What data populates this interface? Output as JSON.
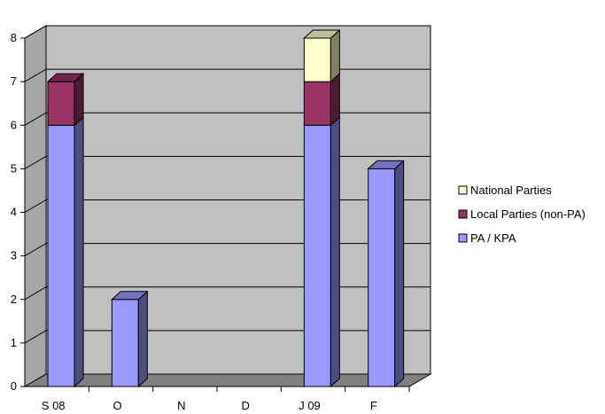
{
  "chart_data": {
    "type": "bar",
    "stacked": true,
    "three_d": true,
    "title": "",
    "xlabel": "",
    "ylabel": "",
    "categories": [
      "S 08",
      "O",
      "N",
      "D",
      "J 09",
      "F"
    ],
    "series": [
      {
        "name": "PA / KPA",
        "values": [
          6,
          2,
          0,
          0,
          6,
          5
        ],
        "color": "#9999ff"
      },
      {
        "name": "Local Parties (non-PA)",
        "values": [
          1,
          0,
          0,
          0,
          1,
          0
        ],
        "color": "#993366"
      },
      {
        "name": "National Parties",
        "values": [
          0,
          0,
          0,
          0,
          1,
          0
        ],
        "color": "#ffffcc"
      }
    ],
    "ylim": [
      0,
      8
    ],
    "yticks": [
      0,
      1,
      2,
      3,
      4,
      5,
      6,
      7,
      8
    ],
    "grid": true,
    "legend_position": "right",
    "wall_color": "#c0c0c0",
    "floor_color": "#808080"
  }
}
